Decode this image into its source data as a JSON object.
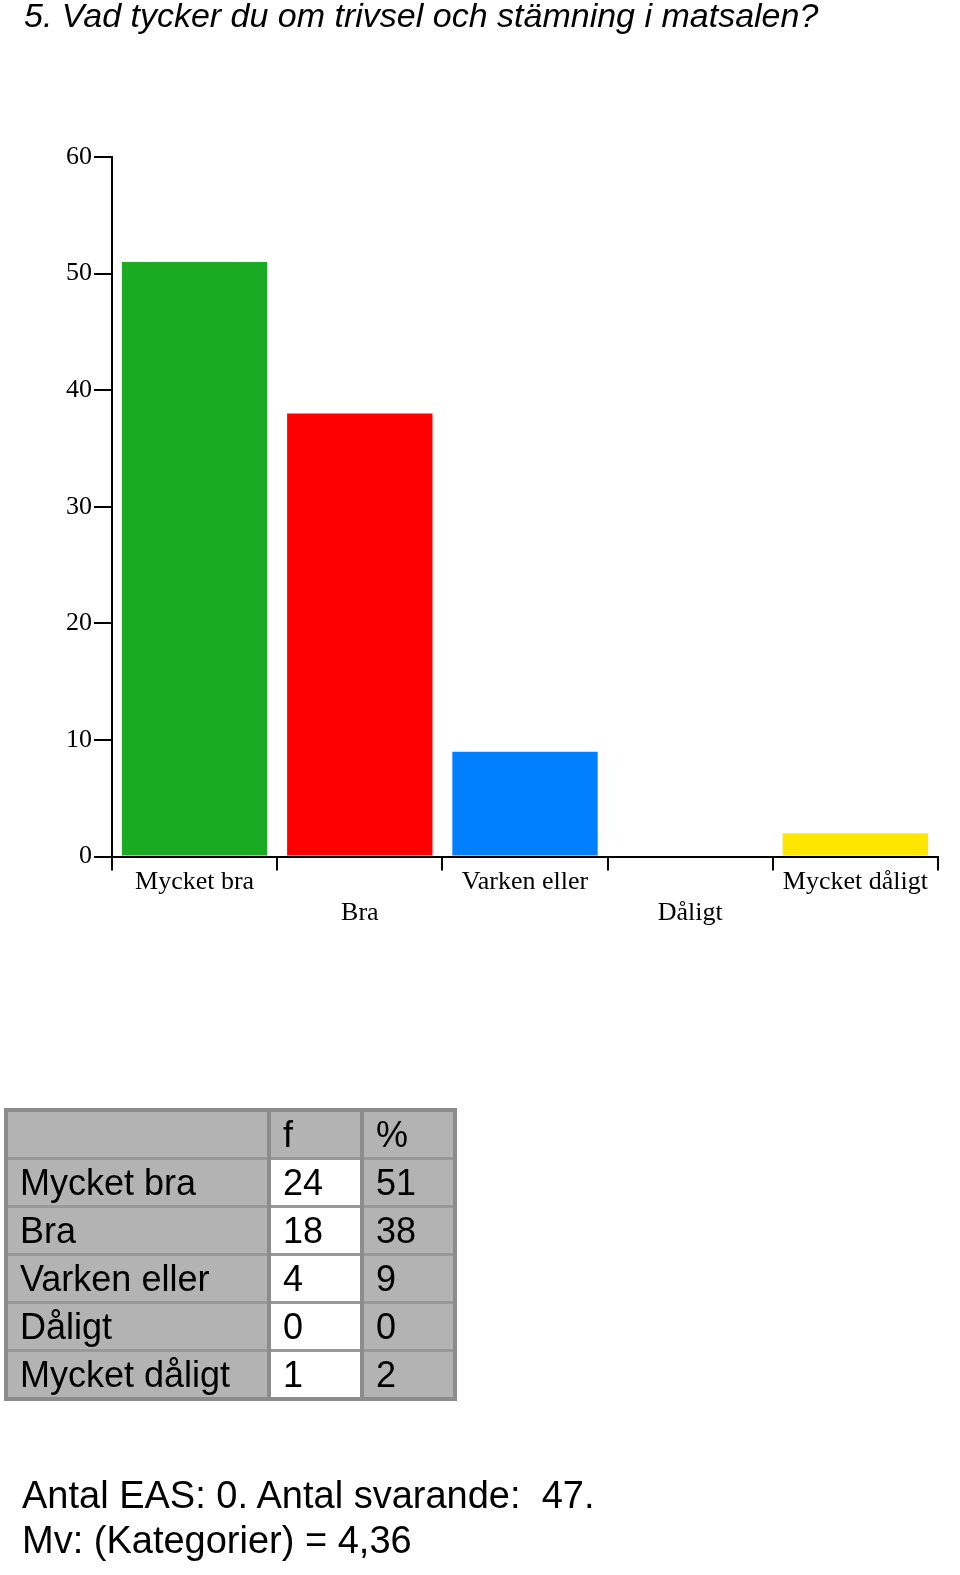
{
  "chart_data": [
    {
      "type": "bar",
      "title": "5. Vad tycker du om trivsel och stämning i matsalen?",
      "categories": [
        "Mycket bra",
        "Bra",
        "Varken eller",
        "Dåligt",
        "Mycket dåligt"
      ],
      "values": [
        51,
        38,
        9,
        0,
        2
      ],
      "colors": [
        "#1aab22",
        "#ff0000",
        "#0080ff",
        "#ffffff",
        "#ffe600"
      ],
      "ylim": [
        0,
        60
      ],
      "yticks": [
        0,
        10,
        20,
        30,
        40,
        50,
        60
      ],
      "grid": false,
      "legend": false,
      "annotations": [
        "Antal EAS: 0. Antal svarande:  47.",
        "Mv: (Kategorier) = 4,36"
      ]
    },
    {
      "type": "other",
      "categories": [
        "Mycket bra",
        "Bra",
        "Varken eller",
        "Dåligt",
        "Mycket dåligt"
      ],
      "series": [
        {
          "name": "f",
          "values": [
            24,
            18,
            4,
            0,
            1
          ]
        },
        {
          "name": "%",
          "values": [
            51,
            38,
            9,
            0,
            2
          ]
        }
      ],
      "data_labels": true
    }
  ]
}
